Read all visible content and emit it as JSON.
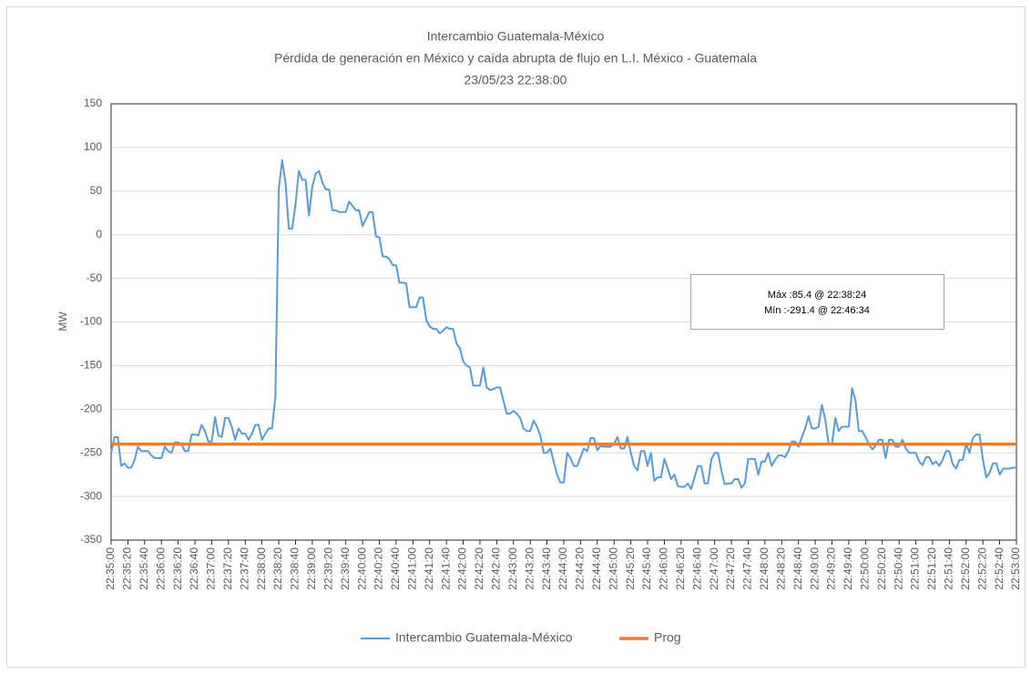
{
  "chart_data": {
    "type": "line",
    "title": "Intercambio Guatemala-México",
    "subtitle": "Pérdida de generación en México y caída abrupta de flujo en L.I. México - Guatemala",
    "date": "23/05/23 22:38:00",
    "y_label": "MW",
    "annotations": [
      "Máx :85.4 @ 22:38:24",
      "Mín :-291.4 @ 22:46:34"
    ],
    "ylim": [
      -350,
      150
    ],
    "yticks": [
      -350,
      -300,
      -250,
      -200,
      -150,
      -100,
      -50,
      0,
      50,
      100,
      150
    ],
    "grid": true,
    "legend": "bottom",
    "categories": [
      "22:35:00",
      null,
      null,
      null,
      null,
      "22:35:20",
      null,
      null,
      null,
      null,
      "22:35:40",
      null,
      null,
      null,
      null,
      "22:36:00",
      null,
      null,
      null,
      null,
      "22:36:20",
      null,
      null,
      null,
      null,
      "22:36:40",
      null,
      null,
      null,
      null,
      "22:37:00",
      null,
      null,
      null,
      null,
      "22:37:20",
      null,
      null,
      null,
      null,
      "22:37:40",
      null,
      null,
      null,
      null,
      "22:38:00",
      null,
      null,
      null,
      null,
      "22:38:20",
      null,
      null,
      null,
      null,
      "22:38:40",
      null,
      null,
      null,
      null,
      "22:39:00",
      null,
      null,
      null,
      null,
      "22:39:20",
      null,
      null,
      null,
      null,
      "22:39:40",
      null,
      null,
      null,
      null,
      "22:40:00",
      null,
      null,
      null,
      null,
      "22:40:20",
      null,
      null,
      null,
      null,
      "22:40:40",
      null,
      null,
      null,
      null,
      "22:41:00",
      null,
      null,
      null,
      null,
      "22:41:20",
      null,
      null,
      null,
      null,
      "22:41:40",
      null,
      null,
      null,
      null,
      "22:42:00",
      null,
      null,
      null,
      null,
      "22:42:20",
      null,
      null,
      null,
      null,
      "22:42:40",
      null,
      null,
      null,
      null,
      "22:43:00",
      null,
      null,
      null,
      null,
      "22:43:20",
      null,
      null,
      null,
      null,
      "22:43:40",
      null,
      null,
      null,
      null,
      "22:44:00",
      null,
      null,
      null,
      null,
      "22:44:20",
      null,
      null,
      null,
      null,
      "22:44:40",
      null,
      null,
      null,
      null,
      "22:45:00",
      null,
      null,
      null,
      null,
      "22:45:20",
      null,
      null,
      null,
      null,
      "22:45:40",
      null,
      null,
      null,
      null,
      "22:46:00",
      null,
      null,
      null,
      null,
      "22:46:20",
      null,
      null,
      null,
      null,
      "22:46:40",
      null,
      null,
      null,
      null,
      "22:47:00",
      null,
      null,
      null,
      null,
      "22:47:20",
      null,
      null,
      null,
      null,
      "22:47:40",
      null,
      null,
      null,
      null,
      "22:48:00",
      null,
      null,
      null,
      null,
      "22:48:20",
      null,
      null,
      null,
      null,
      "22:48:40",
      null,
      null,
      null,
      null,
      "22:49:00",
      null,
      null,
      null,
      null,
      "22:49:20",
      null,
      null,
      null,
      null,
      "22:49:40",
      null,
      null,
      null,
      null,
      "22:50:00",
      null,
      null,
      null,
      null,
      "22:50:20",
      null,
      null,
      null,
      null,
      "22:50:40",
      null,
      null,
      null,
      null,
      "22:51:00",
      null,
      null,
      null,
      null,
      "22:51:20",
      null,
      null,
      null,
      null,
      "22:51:40",
      null,
      null,
      null,
      null,
      "22:52:00",
      null,
      null,
      null,
      null,
      "22:52:20",
      null,
      null,
      null,
      null,
      "22:52:40",
      null,
      null,
      null,
      null,
      "22:53:00"
    ],
    "series": [
      {
        "name": "Intercambio Guatemala-México",
        "color": "#5b9bd5",
        "width": 2,
        "values": [
          -250,
          -232,
          -232,
          -265,
          -262,
          -267,
          -267,
          -258,
          -243,
          -248,
          -248,
          -248,
          -253,
          -256,
          -256,
          -256,
          -243,
          -248,
          -250,
          -238,
          -238,
          -240,
          -248,
          -248,
          -229,
          -229,
          -230,
          -218,
          -225,
          -237,
          -237,
          -209,
          -230,
          -232,
          -210,
          -210,
          -220,
          -235,
          -222,
          -228,
          -228,
          -235,
          -228,
          -218,
          -218,
          -235,
          -228,
          -222,
          -222,
          -185,
          52,
          85.4,
          60,
          7,
          7,
          35,
          73,
          63,
          63,
          22,
          55,
          70,
          73,
          60,
          52,
          52,
          28,
          28,
          26,
          26,
          26,
          38,
          33,
          28,
          28,
          10,
          18,
          26,
          26,
          -2,
          -3,
          -25,
          -25,
          -28,
          -35,
          -35,
          -55,
          -55,
          -56,
          -83,
          -83,
          -83,
          -72,
          -72,
          -98,
          -105,
          -108,
          -108,
          -113,
          -110,
          -106,
          -108,
          -108,
          -125,
          -130,
          -145,
          -150,
          -152,
          -173,
          -173,
          -173,
          -152,
          -175,
          -178,
          -177,
          -175,
          -175,
          -190,
          -205,
          -205,
          -202,
          -205,
          -210,
          -222,
          -225,
          -225,
          -213,
          -220,
          -230,
          -250,
          -250,
          -245,
          -260,
          -275,
          -284,
          -284,
          -250,
          -256,
          -265,
          -265,
          -255,
          -245,
          -248,
          -233,
          -233,
          -247,
          -242,
          -243,
          -243,
          -243,
          -240,
          -232,
          -245,
          -245,
          -232,
          -250,
          -265,
          -270,
          -248,
          -248,
          -265,
          -250,
          -282,
          -278,
          -278,
          -257,
          -268,
          -280,
          -275,
          -288,
          -289,
          -289,
          -285,
          -291.4,
          -278,
          -265,
          -265,
          -285,
          -285,
          -258,
          -250,
          -250,
          -270,
          -286,
          -285,
          -285,
          -280,
          -280,
          -290,
          -285,
          -257,
          -257,
          -257,
          -275,
          -260,
          -260,
          -250,
          -265,
          -258,
          -253,
          -253,
          -255,
          -248,
          -237,
          -237,
          -243,
          -232,
          -222,
          -208,
          -222,
          -222,
          -220,
          -195,
          -212,
          -240,
          -240,
          -210,
          -225,
          -220,
          -220,
          -220,
          -176,
          -190,
          -225,
          -225,
          -232,
          -240,
          -246,
          -242,
          -235,
          -235,
          -256,
          -235,
          -235,
          -243,
          -243,
          -235,
          -245,
          -250,
          -250,
          -250,
          -260,
          -264,
          -255,
          -255,
          -263,
          -260,
          -265,
          -258,
          -248,
          -248,
          -263,
          -268,
          -258,
          -258,
          -240,
          -250,
          -233,
          -229,
          -229,
          -258,
          -278,
          -273,
          -262,
          -262,
          -275,
          -268,
          -268,
          -268,
          -267,
          -267
        ]
      },
      {
        "name": "Prog",
        "color": "#ed7d31",
        "width": 3.5,
        "values": [
          -240,
          -240,
          -240,
          -240,
          -240,
          -240,
          -240,
          -240,
          -240,
          -240,
          -240,
          -240,
          -240,
          -240,
          -240,
          -240,
          -240,
          -240,
          -240,
          -240,
          -240,
          -240,
          -240,
          -240,
          -240,
          -240,
          -240,
          -240,
          -240,
          -240,
          -240,
          -240,
          -240,
          -240,
          -240,
          -240,
          -240,
          -240,
          -240,
          -240,
          -240,
          -240,
          -240,
          -240,
          -240,
          -240,
          -240,
          -240,
          -240,
          -240,
          -240,
          -240,
          -240,
          -240,
          -240,
          -240,
          -240,
          -240,
          -240,
          -240,
          -240,
          -240,
          -240,
          -240,
          -240,
          -240,
          -240,
          -240,
          -240,
          -240,
          -240,
          -240,
          -240,
          -240,
          -240,
          -240,
          -240,
          -240,
          -240,
          -240,
          -240,
          -240,
          -240,
          -240,
          -240,
          -240,
          -240,
          -240,
          -240,
          -240,
          -240,
          -240,
          -240,
          -240,
          -240,
          -240,
          -240,
          -240,
          -240,
          -240,
          -240,
          -240,
          -240,
          -240,
          -240,
          -240,
          -240,
          -240,
          -240,
          -240,
          -240,
          -240,
          -240,
          -240,
          -240,
          -240,
          -240,
          -240,
          -240,
          -240,
          -240,
          -240,
          -240,
          -240,
          -240,
          -240,
          -240,
          -240,
          -240,
          -240,
          -240,
          -240,
          -240,
          -240,
          -240,
          -240,
          -240,
          -240,
          -240,
          -240,
          -240,
          -240,
          -240,
          -240,
          -240,
          -240,
          -240,
          -240,
          -240,
          -240,
          -240,
          -240,
          -240,
          -240,
          -240,
          -240,
          -240,
          -240,
          -240,
          -240,
          -240,
          -240,
          -240,
          -240,
          -240,
          -240,
          -240,
          -240,
          -240,
          -240,
          -240,
          -240,
          -240,
          -240,
          -240,
          -240,
          -240,
          -240,
          -240,
          -240,
          -240,
          -240,
          -240,
          -240,
          -240,
          -240,
          -240,
          -240,
          -240,
          -240,
          -240,
          -240,
          -240,
          -240,
          -240,
          -240,
          -240,
          -240,
          -240,
          -240,
          -240,
          -240,
          -240,
          -240,
          -240,
          -240,
          -240,
          -240,
          -240,
          -240,
          -240,
          -240,
          -240,
          -240,
          -240,
          -240,
          -240,
          -240,
          -240,
          -240,
          -240,
          -240,
          -240,
          -240,
          -240,
          -240,
          -240,
          -240,
          -240,
          -240,
          -240,
          -240,
          -240,
          -240,
          -240,
          -240,
          -240,
          -240,
          -240,
          -240,
          -240,
          -240,
          -240,
          -240,
          -240,
          -240,
          -240,
          -240,
          -240,
          -240,
          -240,
          -240,
          -240,
          -240,
          -240,
          -240,
          -240,
          -240,
          -240,
          -240,
          -240,
          -240,
          -240,
          -240,
          -240,
          -240,
          -240,
          -240,
          -240,
          -240,
          -240
        ]
      }
    ]
  }
}
